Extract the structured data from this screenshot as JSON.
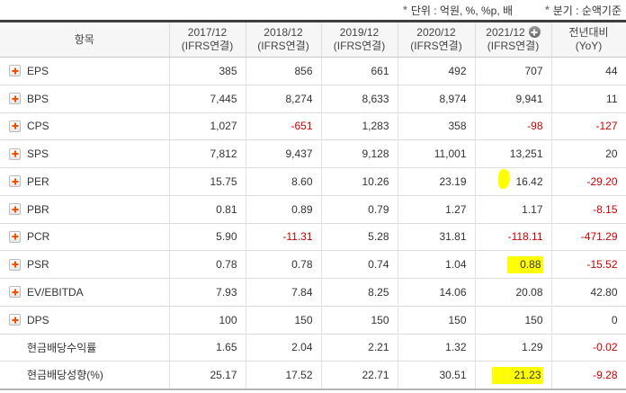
{
  "legend": {
    "notes": [
      {
        "marker": "*",
        "text": "단위 : 억원, %, %p, 배"
      },
      {
        "marker": "*",
        "text": "분기 : 순액기준"
      }
    ]
  },
  "table": {
    "item_header": "항목",
    "columns": [
      {
        "period": "2017/12",
        "basis": "(IFRS연결)"
      },
      {
        "period": "2018/12",
        "basis": "(IFRS연결)"
      },
      {
        "period": "2019/12",
        "basis": "(IFRS연결)"
      },
      {
        "period": "2020/12",
        "basis": "(IFRS연결)"
      },
      {
        "period": "2021/12",
        "basis": "(IFRS연결)",
        "add_icon": "plus-circle-icon"
      },
      {
        "period": "전년대비",
        "basis": "(YoY)"
      }
    ],
    "rows": [
      {
        "label": "EPS",
        "expandable": true,
        "values": [
          "385",
          "856",
          "661",
          "492",
          "707",
          "44"
        ]
      },
      {
        "label": "BPS",
        "expandable": true,
        "values": [
          "7,445",
          "8,274",
          "8,633",
          "8,974",
          "9,941",
          "11"
        ]
      },
      {
        "label": "CPS",
        "expandable": true,
        "values": [
          "1,027",
          "-651",
          "1,283",
          "358",
          "-98",
          "-127"
        ]
      },
      {
        "label": "SPS",
        "expandable": true,
        "values": [
          "7,812",
          "9,437",
          "9,128",
          "11,001",
          "13,251",
          "20"
        ]
      },
      {
        "label": "PER",
        "expandable": true,
        "values": [
          "15.75",
          "8.60",
          "10.26",
          "23.19",
          "16.42",
          "-29.20"
        ],
        "highlight": {
          "col": 4,
          "type": "marker"
        }
      },
      {
        "label": "PBR",
        "expandable": true,
        "values": [
          "0.81",
          "0.89",
          "0.79",
          "1.27",
          "1.17",
          "-8.15"
        ]
      },
      {
        "label": "PCR",
        "expandable": true,
        "values": [
          "5.90",
          "-11.31",
          "5.28",
          "31.81",
          "-118.11",
          "-471.29"
        ]
      },
      {
        "label": "PSR",
        "expandable": true,
        "values": [
          "0.78",
          "0.78",
          "0.74",
          "1.04",
          "0.88",
          "-15.52"
        ],
        "highlight": {
          "col": 4,
          "type": "box"
        }
      },
      {
        "label": "EV/EBITDA",
        "expandable": true,
        "values": [
          "7.93",
          "7.84",
          "8.25",
          "14.06",
          "20.08",
          "42.80"
        ]
      },
      {
        "label": "DPS",
        "expandable": true,
        "values": [
          "100",
          "150",
          "150",
          "150",
          "150",
          "0"
        ]
      },
      {
        "label": "현금배당수익률",
        "expandable": false,
        "values": [
          "1.65",
          "2.04",
          "2.21",
          "1.32",
          "1.29",
          "-0.02"
        ]
      },
      {
        "label": "현금배당성향(%)",
        "expandable": false,
        "values": [
          "25.17",
          "17.52",
          "22.71",
          "30.51",
          "21.23",
          "-9.28"
        ],
        "highlight": {
          "col": 4,
          "type": "box-wide"
        }
      }
    ]
  },
  "colors": {
    "accent_orange": "#f05000",
    "negative_red": "#cc0000",
    "highlight_yellow": "#ffff00",
    "header_bg": "#f6f6f6"
  }
}
